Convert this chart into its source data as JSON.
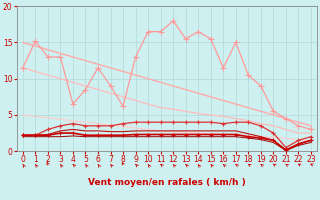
{
  "background_color": "#cff0f0",
  "grid_color": "#b0d8d8",
  "xlabel": "Vent moyen/en rafales ( km/h )",
  "xlim": [
    -0.5,
    23.5
  ],
  "ylim": [
    0,
    20
  ],
  "yticks": [
    0,
    5,
    10,
    15,
    20
  ],
  "xticks": [
    0,
    1,
    2,
    3,
    4,
    5,
    6,
    7,
    8,
    9,
    10,
    11,
    12,
    13,
    14,
    15,
    16,
    17,
    18,
    19,
    20,
    21,
    22,
    23
  ],
  "series": [
    {
      "name": "jagged_light_pink",
      "x": [
        0,
        1,
        2,
        3,
        4,
        5,
        6,
        7,
        8,
        9,
        10,
        11,
        12,
        13,
        14,
        15,
        16,
        17,
        18,
        19,
        20,
        21,
        22,
        23
      ],
      "y": [
        11.5,
        15.2,
        13.0,
        13.0,
        6.5,
        8.5,
        11.5,
        9.0,
        6.2,
        13.0,
        16.5,
        16.5,
        18.0,
        15.5,
        16.5,
        15.5,
        11.5,
        15.0,
        10.5,
        9.0,
        5.5,
        4.5,
        3.5,
        3.0
      ],
      "color": "#ff9999",
      "lw": 0.9,
      "marker": "+",
      "ms": 4,
      "mew": 0.8,
      "zorder": 4
    },
    {
      "name": "smooth_decline_upper",
      "x": [
        0,
        1,
        2,
        3,
        4,
        5,
        6,
        7,
        8,
        9,
        10,
        11,
        12,
        13,
        14,
        15,
        16,
        17,
        18,
        19,
        20,
        21,
        22,
        23
      ],
      "y": [
        15.0,
        14.5,
        14.0,
        13.5,
        13.0,
        12.5,
        12.0,
        11.5,
        11.0,
        10.5,
        10.0,
        9.5,
        9.0,
        8.5,
        8.0,
        7.5,
        7.0,
        6.5,
        6.0,
        5.5,
        5.0,
        4.5,
        4.0,
        3.5
      ],
      "color": "#ffaaaa",
      "lw": 1.0,
      "marker": "None",
      "ms": 0,
      "mew": 0,
      "zorder": 2
    },
    {
      "name": "smooth_decline_mid",
      "x": [
        0,
        1,
        2,
        3,
        4,
        5,
        6,
        7,
        8,
        9,
        10,
        11,
        12,
        13,
        14,
        15,
        16,
        17,
        18,
        19,
        20,
        21,
        22,
        23
      ],
      "y": [
        11.5,
        11.0,
        10.5,
        10.0,
        9.5,
        9.0,
        8.5,
        8.0,
        7.5,
        7.0,
        6.5,
        6.0,
        5.8,
        5.5,
        5.2,
        5.0,
        4.8,
        4.5,
        4.2,
        3.8,
        3.5,
        3.0,
        2.5,
        2.5
      ],
      "color": "#ffbbbb",
      "lw": 0.9,
      "marker": "None",
      "ms": 0,
      "mew": 0,
      "zorder": 2
    },
    {
      "name": "smooth_decline_lower",
      "x": [
        0,
        1,
        2,
        3,
        4,
        5,
        6,
        7,
        8,
        9,
        10,
        11,
        12,
        13,
        14,
        15,
        16,
        17,
        18,
        19,
        20,
        21,
        22,
        23
      ],
      "y": [
        5.0,
        4.8,
        4.6,
        4.4,
        4.2,
        4.0,
        3.8,
        3.6,
        3.4,
        3.2,
        3.0,
        2.8,
        2.7,
        2.6,
        2.5,
        2.4,
        2.3,
        2.2,
        2.1,
        2.0,
        1.9,
        1.8,
        1.5,
        1.5
      ],
      "color": "#ffcccc",
      "lw": 0.8,
      "marker": "None",
      "ms": 0,
      "mew": 0,
      "zorder": 2
    },
    {
      "name": "rafales_dots_upper",
      "x": [
        0,
        1,
        2,
        3,
        4,
        5,
        6,
        7,
        8,
        9,
        10,
        11,
        12,
        13,
        14,
        15,
        16,
        17,
        18,
        19,
        20,
        21,
        22,
        23
      ],
      "y": [
        2.2,
        2.2,
        3.0,
        3.5,
        3.8,
        3.5,
        3.5,
        3.5,
        3.8,
        4.0,
        4.0,
        4.0,
        4.0,
        4.0,
        4.0,
        4.0,
        3.8,
        4.0,
        4.0,
        3.5,
        2.5,
        0.5,
        1.5,
        2.0
      ],
      "color": "#dd3333",
      "lw": 0.9,
      "marker": "+",
      "ms": 3.5,
      "mew": 0.8,
      "zorder": 5
    },
    {
      "name": "vent_moy_main",
      "x": [
        0,
        1,
        2,
        3,
        4,
        5,
        6,
        7,
        8,
        9,
        10,
        11,
        12,
        13,
        14,
        15,
        16,
        17,
        18,
        19,
        20,
        21,
        22,
        23
      ],
      "y": [
        2.2,
        2.2,
        2.2,
        2.5,
        2.5,
        2.2,
        2.2,
        2.2,
        2.2,
        2.3,
        2.3,
        2.3,
        2.3,
        2.3,
        2.3,
        2.3,
        2.3,
        2.3,
        2.0,
        1.8,
        1.5,
        0.1,
        1.0,
        1.5
      ],
      "color": "#cc0000",
      "lw": 1.2,
      "marker": "+",
      "ms": 3,
      "mew": 0.8,
      "zorder": 6
    },
    {
      "name": "dark_flat1",
      "x": [
        0,
        1,
        2,
        3,
        4,
        5,
        6,
        7,
        8,
        9,
        10,
        11,
        12,
        13,
        14,
        15,
        16,
        17,
        18,
        19,
        20,
        21,
        22,
        23
      ],
      "y": [
        2.2,
        2.2,
        2.3,
        2.8,
        3.0,
        2.8,
        2.8,
        2.7,
        2.7,
        2.8,
        2.8,
        2.8,
        2.8,
        2.8,
        2.8,
        2.8,
        2.8,
        2.8,
        2.4,
        2.0,
        1.5,
        0.2,
        1.0,
        1.5
      ],
      "color": "#bb1111",
      "lw": 0.8,
      "marker": "None",
      "ms": 0,
      "mew": 0,
      "zorder": 4
    },
    {
      "name": "dark_flat2",
      "x": [
        0,
        1,
        2,
        3,
        4,
        5,
        6,
        7,
        8,
        9,
        10,
        11,
        12,
        13,
        14,
        15,
        16,
        17,
        18,
        19,
        20,
        21,
        22,
        23
      ],
      "y": [
        2.0,
        2.0,
        2.0,
        2.0,
        2.1,
        2.0,
        2.0,
        2.0,
        2.0,
        2.0,
        2.0,
        2.0,
        2.0,
        2.0,
        2.0,
        2.0,
        2.0,
        2.0,
        1.8,
        1.6,
        1.2,
        0.1,
        0.8,
        1.2
      ],
      "color": "#990000",
      "lw": 0.7,
      "marker": "None",
      "ms": 0,
      "mew": 0,
      "zorder": 3
    }
  ],
  "xlabel_color": "#cc0000",
  "tick_color": "#cc0000",
  "axis_color": "#888888",
  "arrow_color": "#cc0000",
  "arrow_angles": [
    200,
    200,
    195,
    200,
    210,
    200,
    200,
    205,
    195,
    210,
    200,
    215,
    205,
    210,
    200,
    205,
    210,
    215,
    220,
    215,
    225,
    220,
    230,
    235
  ]
}
